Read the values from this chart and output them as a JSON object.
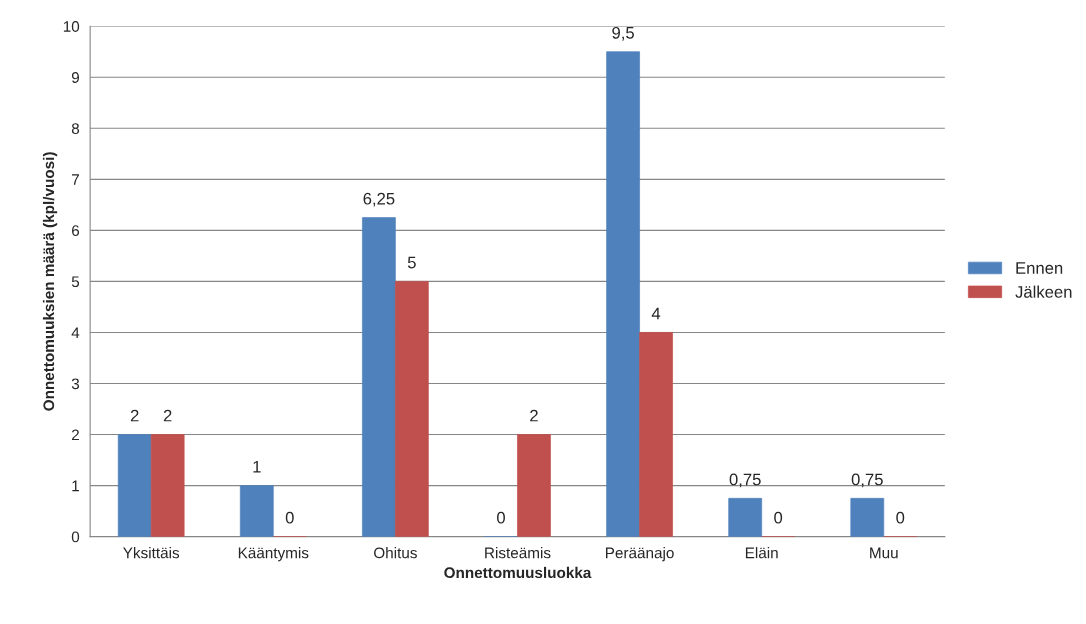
{
  "chart_data": {
    "type": "bar",
    "xlabel": "Onnettomuusluokka",
    "ylabel": "Onnettomuuksien määrä (kpl/vuosi)",
    "categories": [
      "Yksittäis",
      "Kääntymis",
      "Ohitus",
      "Risteämis",
      "Peräänajo",
      "Eläin",
      "Muu"
    ],
    "series": [
      {
        "name": "Ennen",
        "color": "#4f81bd",
        "values": [
          2,
          1,
          6.25,
          0,
          9.5,
          0.75,
          0.75
        ],
        "value_labels": [
          "2",
          "1",
          "6,25",
          "0",
          "9,5",
          "0,75",
          "0,75"
        ]
      },
      {
        "name": "Jälkeen",
        "color": "#c0504d",
        "values": [
          2,
          0,
          5,
          2,
          4,
          0,
          0
        ],
        "value_labels": [
          "2",
          "0",
          "5",
          "2",
          "4",
          "0",
          "0"
        ]
      }
    ],
    "ylim": [
      0,
      10
    ],
    "yticks": [
      0,
      1,
      2,
      3,
      4,
      5,
      6,
      7,
      8,
      9,
      10
    ],
    "grid": "y",
    "legend": "right"
  }
}
